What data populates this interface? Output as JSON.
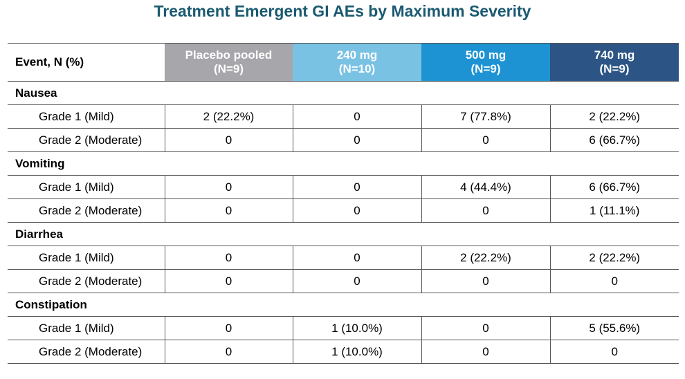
{
  "title": "Treatment Emergent GI AEs by Maximum Severity",
  "table": {
    "event_header": "Event, N (%)",
    "columns": [
      {
        "label": "Placebo pooled",
        "n": "(N=9)",
        "color": "#a7a6ab"
      },
      {
        "label": "240 mg",
        "n": "(N=10)",
        "color": "#79c2e4"
      },
      {
        "label": "500 mg",
        "n": "(N=9)",
        "color": "#1d93d3"
      },
      {
        "label": "740 mg",
        "n": "(N=9)",
        "color": "#2c5585"
      }
    ],
    "sections": [
      {
        "name": "Nausea",
        "rows": [
          {
            "grade": "Grade 1 (Mild)",
            "values": [
              "2 (22.2%)",
              "0",
              "7 (77.8%)",
              "2 (22.2%)"
            ]
          },
          {
            "grade": "Grade 2 (Moderate)",
            "values": [
              "0",
              "0",
              "0",
              "6 (66.7%)"
            ]
          }
        ]
      },
      {
        "name": "Vomiting",
        "rows": [
          {
            "grade": "Grade 1 (Mild)",
            "values": [
              "0",
              "0",
              "4 (44.4%)",
              "6 (66.7%)"
            ]
          },
          {
            "grade": "Grade 2 (Moderate)",
            "values": [
              "0",
              "0",
              "0",
              "1 (11.1%)"
            ]
          }
        ]
      },
      {
        "name": "Diarrhea",
        "rows": [
          {
            "grade": "Grade 1 (Mild)",
            "values": [
              "0",
              "0",
              "2 (22.2%)",
              "2 (22.2%)"
            ]
          },
          {
            "grade": "Grade 2 (Moderate)",
            "values": [
              "0",
              "0",
              "0",
              "0"
            ]
          }
        ]
      },
      {
        "name": "Constipation",
        "rows": [
          {
            "grade": "Grade 1 (Mild)",
            "values": [
              "0",
              "1 (10.0%)",
              "0",
              "5 (55.6%)"
            ]
          },
          {
            "grade": "Grade 2 (Moderate)",
            "values": [
              "0",
              "1 (10.0%)",
              "0",
              "0"
            ]
          }
        ]
      }
    ]
  }
}
